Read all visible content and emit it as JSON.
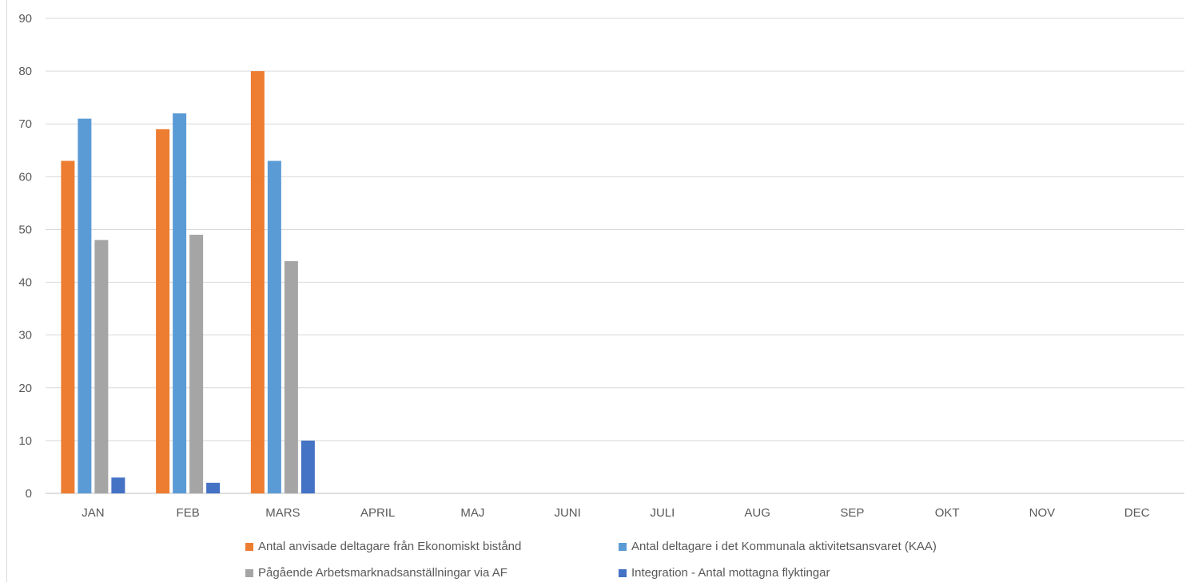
{
  "chart_data": {
    "type": "bar",
    "title": "",
    "xlabel": "",
    "ylabel": "",
    "ylim": [
      0,
      90
    ],
    "yticks": [
      0,
      10,
      20,
      30,
      40,
      50,
      60,
      70,
      80,
      90
    ],
    "grid": true,
    "legend_position": "bottom",
    "categories": [
      "JAN",
      "FEB",
      "MARS",
      "APRIL",
      "MAJ",
      "JUNI",
      "JULI",
      "AUG",
      "SEP",
      "OKT",
      "NOV",
      "DEC"
    ],
    "series": [
      {
        "name": "Antal anvisade deltagare från Ekonomiskt bistånd",
        "color": "#ED7D31",
        "values": [
          63,
          69,
          80,
          null,
          null,
          null,
          null,
          null,
          null,
          null,
          null,
          null
        ]
      },
      {
        "name": "Antal deltagare i det Kommunala aktivitetsansvaret (KAA)",
        "color": "#5B9BD5",
        "values": [
          71,
          72,
          63,
          null,
          null,
          null,
          null,
          null,
          null,
          null,
          null,
          null
        ]
      },
      {
        "name": "Pågående Arbetsmarknadsanställningar via AF",
        "color": "#A5A5A5",
        "values": [
          48,
          49,
          44,
          null,
          null,
          null,
          null,
          null,
          null,
          null,
          null,
          null
        ]
      },
      {
        "name": "Integration - Antal mottagna flyktingar",
        "color": "#4472C4",
        "values": [
          3,
          2,
          10,
          null,
          null,
          null,
          null,
          null,
          null,
          null,
          null,
          null
        ]
      }
    ]
  }
}
